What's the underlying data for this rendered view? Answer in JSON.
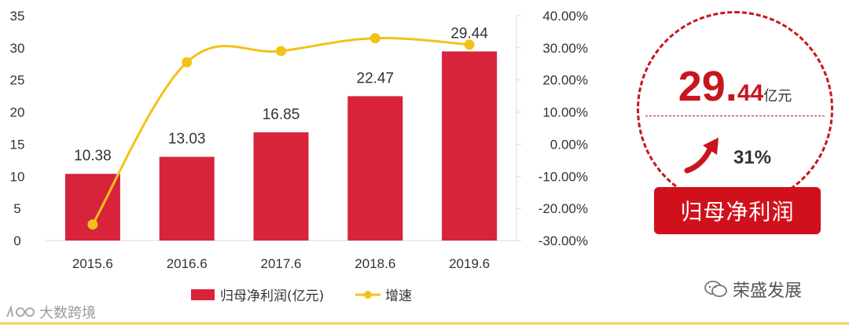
{
  "chart_data": {
    "type": "bar",
    "categories": [
      "2015.6",
      "2016.6",
      "2017.6",
      "2018.6",
      "2019.6"
    ],
    "series": [
      {
        "name": "归母净利润(亿元)",
        "kind": "bar",
        "axis": "left",
        "color": "#d7243b",
        "values": [
          10.38,
          13.03,
          16.85,
          22.47,
          29.44
        ],
        "labels": [
          "10.38",
          "13.03",
          "16.85",
          "22.47",
          "29.44"
        ]
      },
      {
        "name": "增速",
        "kind": "line",
        "axis": "right",
        "color": "#f2c21a",
        "values": [
          -25.0,
          25.5,
          29.0,
          33.0,
          31.0
        ]
      }
    ],
    "y_left": {
      "min": 0,
      "max": 35,
      "ticks": [
        "0",
        "5",
        "10",
        "15",
        "20",
        "25",
        "30",
        "35"
      ]
    },
    "y_right": {
      "min": -30,
      "max": 40,
      "ticks": [
        "-30.00%",
        "-20.00%",
        "-10.00%",
        "0.00%",
        "10.00%",
        "20.00%",
        "30.00%",
        "40.00%"
      ]
    },
    "legend_position": "bottom"
  },
  "badge": {
    "value_int": "29.",
    "value_dec": "44",
    "unit": "亿元",
    "growth": "31%",
    "arrow_icon": "arrow-up-right-icon",
    "label": "归母净利润"
  },
  "watermarks": {
    "right": "荣盛发展",
    "right_icon": "wechat-icon",
    "left": "大数跨境",
    "left_icon": "logo-icon"
  }
}
